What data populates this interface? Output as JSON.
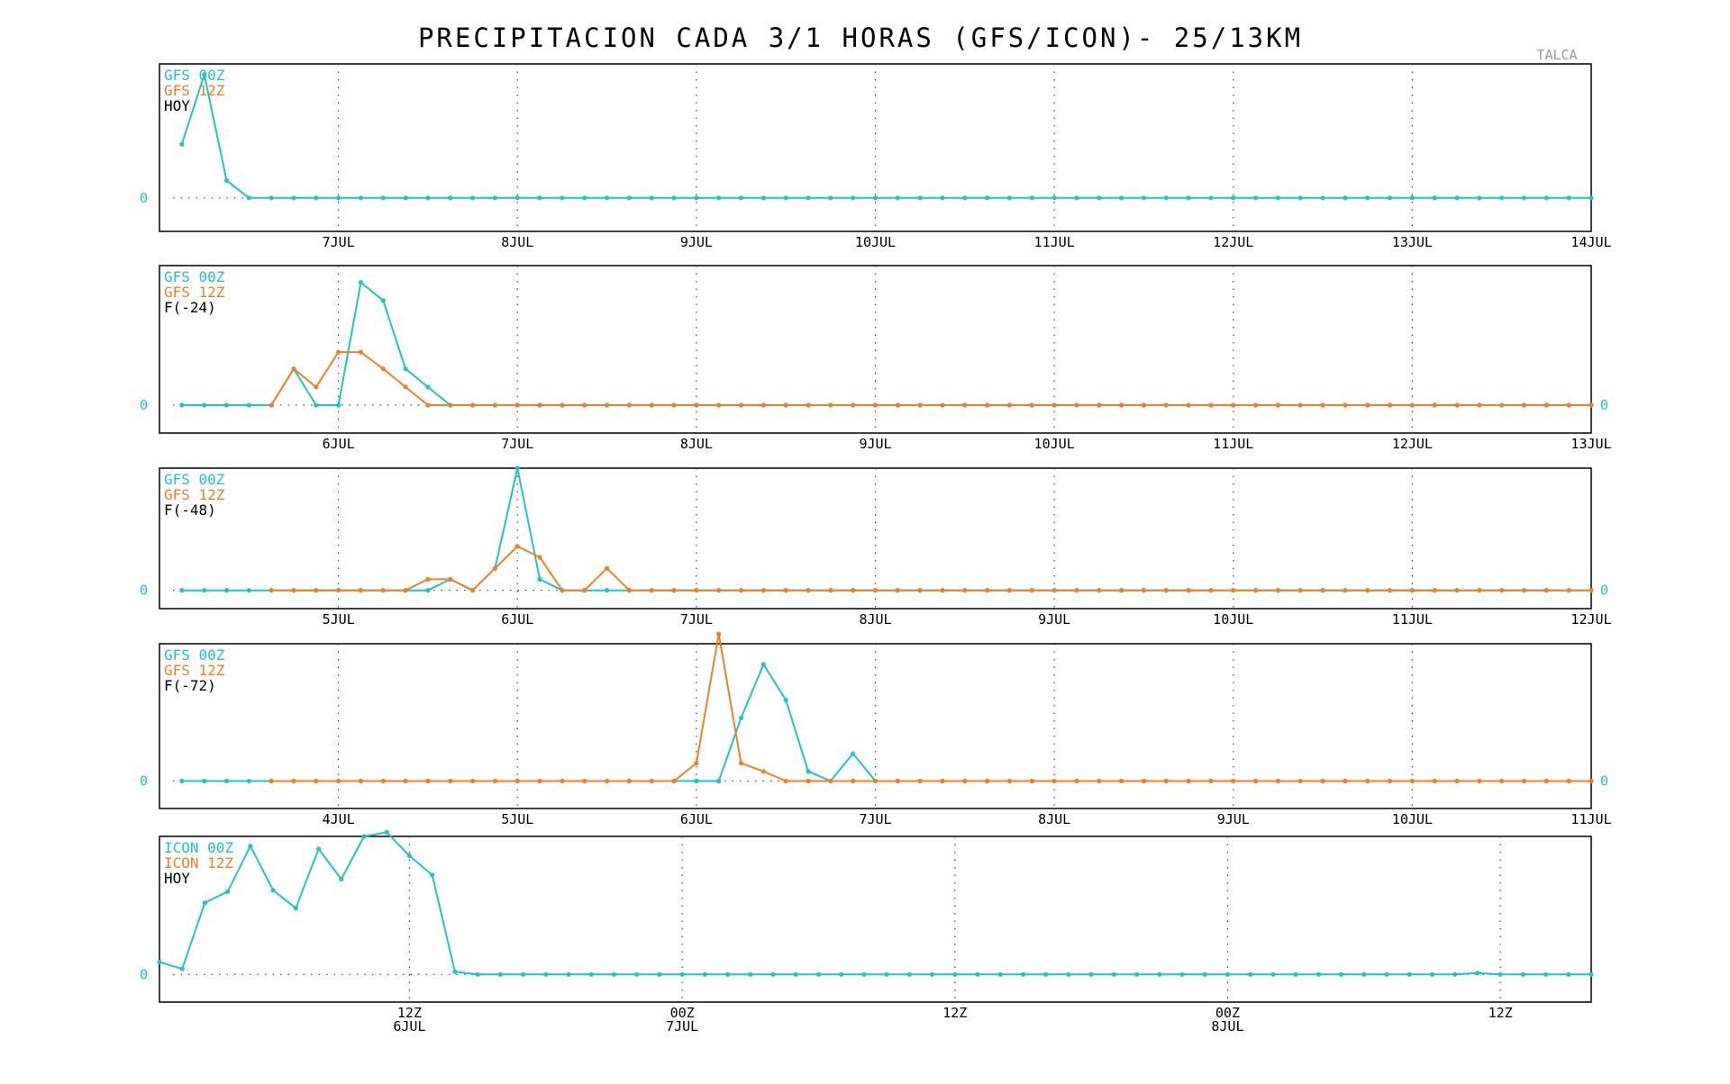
{
  "title": "PRECIPITACION CADA 3/1 HORAS (GFS/ICON)- 25/13KM",
  "location": "TALCA",
  "colors": {
    "model_00z": "#1fc3c8",
    "model_12z": "#f07f24",
    "axis": "#000000",
    "zero_label": "#1fc3c8"
  },
  "chart_data": [
    {
      "type": "line",
      "legend": [
        "GFS 00Z",
        "GFS 12Z",
        "HOY"
      ],
      "zero_label_left": "0",
      "zero_label_right": "",
      "x_unit": "days since 6JUL 00Z",
      "xlim": [
        0,
        8
      ],
      "ylim": [
        -0.25,
        1.0
      ],
      "x_tick_labels": [
        {
          "x": 1,
          "label": "7JUL"
        },
        {
          "x": 2,
          "label": "8JUL"
        },
        {
          "x": 3,
          "label": "9JUL"
        },
        {
          "x": 4,
          "label": "10JUL"
        },
        {
          "x": 5,
          "label": "11JUL"
        },
        {
          "x": 6,
          "label": "12JUL"
        },
        {
          "x": 7,
          "label": "13JUL"
        },
        {
          "x": 8,
          "label": "14JUL"
        }
      ],
      "gridlines": [
        1,
        2,
        3,
        4,
        5,
        6,
        7
      ],
      "series": [
        {
          "name": "GFS 00Z",
          "color_key": "model_00z",
          "x_start": 0.125,
          "x_step": 0.125,
          "x_end": 8,
          "values": [
            0.4,
            0.92,
            0.13,
            0
          ]
        }
      ]
    },
    {
      "type": "line",
      "legend": [
        "GFS 00Z",
        "GFS 12Z",
        "F(-24)"
      ],
      "zero_label_left": "0",
      "zero_label_right": "0",
      "x_unit": "days since 5JUL 00Z",
      "xlim": [
        0,
        8
      ],
      "ylim": [
        -0.2,
        1.0
      ],
      "x_tick_labels": [
        {
          "x": 1,
          "label": "6JUL"
        },
        {
          "x": 2,
          "label": "7JUL"
        },
        {
          "x": 3,
          "label": "8JUL"
        },
        {
          "x": 4,
          "label": "9JUL"
        },
        {
          "x": 5,
          "label": "10JUL"
        },
        {
          "x": 6,
          "label": "11JUL"
        },
        {
          "x": 7,
          "label": "12JUL"
        },
        {
          "x": 8,
          "label": "13JUL"
        }
      ],
      "gridlines": [
        1,
        2,
        3,
        4,
        5,
        6,
        7
      ],
      "series": [
        {
          "name": "GFS 00Z",
          "color_key": "model_00z",
          "x_start": 0.125,
          "x_step": 0.125,
          "x_end": 8,
          "values": [
            0,
            0,
            0,
            0,
            0,
            0.26,
            0,
            0,
            0.88,
            0.75,
            0.26,
            0.13,
            0
          ]
        },
        {
          "name": "GFS 12Z",
          "color_key": "model_12z",
          "x_start": 0.625,
          "x_step": 0.125,
          "x_end": 8,
          "values": [
            0,
            0.26,
            0.13,
            0.38,
            0.38,
            0.26,
            0.13,
            0
          ]
        }
      ]
    },
    {
      "type": "line",
      "legend": [
        "GFS 00Z",
        "GFS 12Z",
        "F(-48)"
      ],
      "zero_label_left": "0",
      "zero_label_right": "0",
      "x_unit": "days since 4JUL 00Z",
      "xlim": [
        0,
        8
      ],
      "ylim": [
        -0.15,
        1.0
      ],
      "x_tick_labels": [
        {
          "x": 1,
          "label": "5JUL"
        },
        {
          "x": 2,
          "label": "6JUL"
        },
        {
          "x": 3,
          "label": "7JUL"
        },
        {
          "x": 4,
          "label": "8JUL"
        },
        {
          "x": 5,
          "label": "9JUL"
        },
        {
          "x": 6,
          "label": "10JUL"
        },
        {
          "x": 7,
          "label": "11JUL"
        },
        {
          "x": 8,
          "label": "12JUL"
        }
      ],
      "gridlines": [
        1,
        2,
        3,
        4,
        5,
        6,
        7
      ],
      "series": [
        {
          "name": "GFS 00Z",
          "color_key": "model_00z",
          "x_start": 0.125,
          "x_step": 0.125,
          "x_end": 8,
          "values": [
            0,
            0,
            0,
            0,
            0,
            0,
            0,
            0,
            0,
            0,
            0,
            0,
            0.09,
            0,
            0.18,
            1.0,
            0.09,
            0,
            0,
            0,
            0,
            0,
            0
          ]
        },
        {
          "name": "GFS 12Z",
          "color_key": "model_12z",
          "x_start": 0.625,
          "x_step": 0.125,
          "x_end": 8,
          "values": [
            0,
            0,
            0,
            0,
            0,
            0,
            0,
            0.09,
            0.09,
            0,
            0.18,
            0.36,
            0.27,
            0,
            0,
            0.18,
            0
          ]
        }
      ]
    },
    {
      "type": "line",
      "legend": [
        "GFS 00Z",
        "GFS 12Z",
        "F(-72)"
      ],
      "zero_label_left": "0",
      "zero_label_right": "0",
      "x_unit": "days since 3JUL 00Z",
      "xlim": [
        0,
        8
      ],
      "ylim": [
        -0.2,
        1.0
      ],
      "x_tick_labels": [
        {
          "x": 1,
          "label": "4JUL"
        },
        {
          "x": 2,
          "label": "5JUL"
        },
        {
          "x": 3,
          "label": "6JUL"
        },
        {
          "x": 4,
          "label": "7JUL"
        },
        {
          "x": 5,
          "label": "8JUL"
        },
        {
          "x": 6,
          "label": "9JUL"
        },
        {
          "x": 7,
          "label": "10JUL"
        },
        {
          "x": 8,
          "label": "11JUL"
        }
      ],
      "gridlines": [
        1,
        2,
        3,
        4,
        5,
        6,
        7
      ],
      "series": [
        {
          "name": "GFS 00Z",
          "color_key": "model_00z",
          "x_start": 0.125,
          "x_step": 0.125,
          "x_end": 8,
          "values": [
            0,
            0,
            0,
            0,
            0,
            0,
            0,
            0,
            0,
            0,
            0,
            0,
            0,
            0,
            0,
            0,
            0,
            0,
            0,
            0,
            0,
            0,
            0,
            0,
            0,
            0.46,
            0.85,
            0.59,
            0.07,
            0,
            0.2,
            0
          ]
        },
        {
          "name": "GFS 12Z",
          "color_key": "model_12z",
          "x_start": 0.625,
          "x_step": 0.125,
          "x_end": 8,
          "values": [
            0,
            0,
            0,
            0,
            0,
            0,
            0,
            0,
            0,
            0,
            0,
            0,
            0,
            0,
            0,
            0,
            0,
            0,
            0,
            0.13,
            1.07,
            0.13,
            0.07,
            0
          ]
        }
      ]
    },
    {
      "type": "line",
      "legend": [
        "ICON 00Z",
        "ICON 12Z",
        "HOY"
      ],
      "zero_label_left": "0",
      "zero_label_right": "",
      "x_unit": "hours since 6JUL 00Z",
      "xlim": [
        1,
        64
      ],
      "ylim": [
        -0.2,
        1.0
      ],
      "x_tick_labels": [
        {
          "x": 12,
          "label": "12Z",
          "sub": "6JUL"
        },
        {
          "x": 24,
          "label": "00Z",
          "sub": "7JUL"
        },
        {
          "x": 36,
          "label": "12Z",
          "sub": ""
        },
        {
          "x": 48,
          "label": "00Z",
          "sub": "8JUL"
        },
        {
          "x": 60,
          "label": "12Z",
          "sub": ""
        }
      ],
      "gridlines": [
        12,
        24,
        36,
        48,
        60
      ],
      "series": [
        {
          "name": "ICON 00Z",
          "color_key": "model_00z",
          "x_start": 1,
          "x_step": 1,
          "x_end": 64,
          "values": [
            0.09,
            0.04,
            0.52,
            0.6,
            0.93,
            0.61,
            0.48,
            0.91,
            0.69,
            1.0,
            1.03,
            0.86,
            0.72,
            0.02,
            0,
            0,
            0,
            0,
            0,
            0,
            0,
            0,
            0,
            0,
            0,
            0,
            0,
            0,
            0,
            0,
            0,
            0,
            0,
            0,
            0,
            0,
            0,
            0,
            0,
            0,
            0,
            0,
            0,
            0,
            0,
            0,
            0,
            0,
            0,
            0,
            0,
            0,
            0,
            0,
            0,
            0,
            0,
            0,
            0.01,
            0,
            0,
            0,
            0,
            0
          ]
        }
      ]
    }
  ]
}
